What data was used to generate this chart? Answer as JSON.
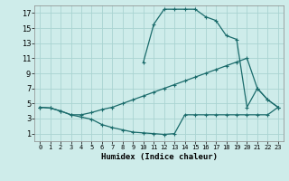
{
  "xlabel": "Humidex (Indice chaleur)",
  "bg_color": "#ceecea",
  "line_color": "#1a6b6b",
  "grid_color": "#aad4d2",
  "xlim": [
    -0.5,
    23.5
  ],
  "ylim": [
    0,
    18
  ],
  "xticks": [
    0,
    1,
    2,
    3,
    4,
    5,
    6,
    7,
    8,
    9,
    10,
    11,
    12,
    13,
    14,
    15,
    16,
    17,
    18,
    19,
    20,
    21,
    22,
    23
  ],
  "yticks": [
    1,
    3,
    5,
    7,
    9,
    11,
    13,
    15,
    17
  ],
  "line1_x": [
    0,
    1,
    2,
    3,
    4,
    5,
    6,
    7,
    8,
    9,
    10,
    11,
    12,
    13,
    14,
    15,
    16,
    17,
    18,
    19,
    20,
    21,
    22,
    23
  ],
  "line1_y": [
    4.5,
    4.4,
    4.0,
    3.5,
    3.2,
    2.9,
    2.2,
    1.8,
    1.5,
    1.2,
    1.1,
    1.0,
    0.9,
    1.0,
    3.5,
    3.5,
    3.5,
    3.5,
    3.5,
    3.5,
    3.5,
    3.5,
    3.5,
    4.5
  ],
  "line2_x": [
    0,
    1,
    2,
    3,
    4,
    5,
    6,
    7,
    8,
    9,
    10,
    11,
    12,
    13,
    14,
    15,
    16,
    17,
    18,
    19,
    20,
    21,
    22,
    23
  ],
  "line2_y": [
    4.5,
    4.4,
    4.0,
    3.5,
    3.5,
    3.8,
    4.2,
    4.5,
    5.0,
    5.5,
    6.0,
    6.5,
    7.0,
    7.5,
    8.0,
    8.5,
    9.0,
    9.5,
    10.0,
    10.5,
    11.0,
    7.0,
    5.5,
    4.5
  ],
  "line3_x": [
    10,
    11,
    12,
    13,
    14,
    15,
    16,
    17,
    18,
    19,
    20,
    21,
    22,
    23
  ],
  "line3_y": [
    10.5,
    15.5,
    17.5,
    17.5,
    17.5,
    17.5,
    16.5,
    16.0,
    14.0,
    13.5,
    4.5,
    7.0,
    5.5,
    4.5
  ]
}
